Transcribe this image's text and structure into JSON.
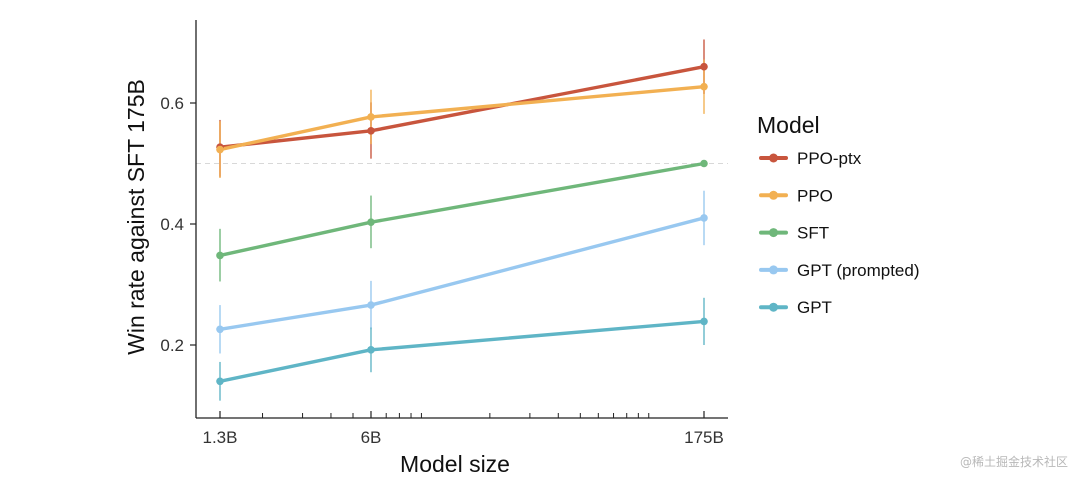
{
  "chart_data": {
    "type": "line",
    "xlabel": "Model size",
    "ylabel": "Win rate against SFT 175B",
    "x_scale": "log",
    "x": [
      1.3,
      6,
      175
    ],
    "x_tick_labels": [
      "1.3B",
      "6B",
      "175B"
    ],
    "y_ticks": [
      0.2,
      0.4,
      0.6
    ],
    "y_tick_labels": [
      "0.2",
      "0.4",
      "0.6"
    ],
    "ylim": [
      0.1,
      0.73
    ],
    "reference_line": 0.5,
    "legend_title": "Model",
    "legend_position": "right",
    "grid": false,
    "series": [
      {
        "name": "PPO-ptx",
        "color": "#c8553d",
        "values": [
          0.527,
          0.554,
          0.66
        ],
        "err_low": [
          0.478,
          0.508,
          0.615
        ],
        "err_high": [
          0.572,
          0.601,
          0.705
        ]
      },
      {
        "name": "PPO",
        "color": "#f2b052",
        "values": [
          0.523,
          0.577,
          0.627
        ],
        "err_low": [
          0.476,
          0.532,
          0.582
        ],
        "err_high": [
          0.57,
          0.622,
          0.672
        ]
      },
      {
        "name": "SFT",
        "color": "#6fb77a",
        "values": [
          0.348,
          0.403,
          0.5
        ],
        "err_low": [
          0.305,
          0.36,
          0.5
        ],
        "err_high": [
          0.392,
          0.447,
          0.5
        ]
      },
      {
        "name": "GPT (prompted)",
        "color": "#98c8f0",
        "values": [
          0.226,
          0.266,
          0.41
        ],
        "err_low": [
          0.186,
          0.226,
          0.365
        ],
        "err_high": [
          0.266,
          0.306,
          0.455
        ]
      },
      {
        "name": "GPT",
        "color": "#5fb5c6",
        "values": [
          0.14,
          0.192,
          0.239
        ],
        "err_low": [
          0.108,
          0.155,
          0.2
        ],
        "err_high": [
          0.172,
          0.229,
          0.278
        ]
      }
    ]
  },
  "watermark": "@稀土掘金技术社区"
}
